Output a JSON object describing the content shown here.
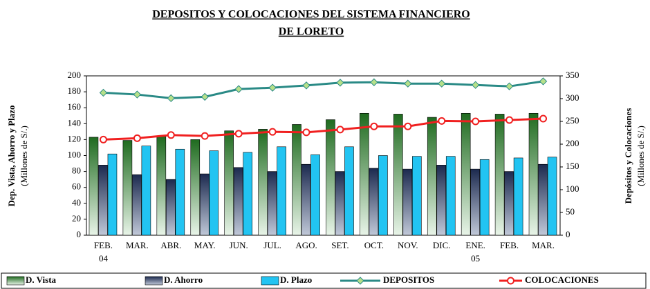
{
  "chart_data": {
    "type": "bar-line",
    "title": [
      "DEPOSITOS Y COLOCACIONES DEL SISTEMA FINANCIERO",
      "DE LORETO"
    ],
    "ylabel": "Dep. Vista, Ahorro y Plazo",
    "ylabel_unit": "(Millones de S/.)",
    "y2label": "Depósitos y Colocaciones",
    "y2label_unit": "(Millones de S/.)",
    "categories": [
      "FEB.",
      "MAR.",
      "ABR.",
      "MAY.",
      "JUN.",
      "JUL.",
      "AGO.",
      "SET.",
      "OCT.",
      "NOV.",
      "DIC.",
      "ENE.",
      "FEB.",
      "MAR."
    ],
    "category_sublabels": [
      "04",
      null,
      null,
      null,
      null,
      null,
      null,
      null,
      null,
      null,
      null,
      "05",
      null,
      null
    ],
    "ylim": [
      0,
      200
    ],
    "yticks": [
      0,
      20,
      40,
      60,
      80,
      100,
      120,
      140,
      160,
      180,
      200
    ],
    "y2lim": [
      0,
      350
    ],
    "y2ticks": [
      0,
      50,
      100,
      150,
      200,
      250,
      300,
      350
    ],
    "series": [
      {
        "name": "D. Vista",
        "kind": "bar",
        "color": "#1f6b1f",
        "values": [
          123,
          119,
          124,
          120,
          131,
          133,
          139,
          145,
          153,
          152,
          148,
          153,
          152,
          153
        ]
      },
      {
        "name": "D. Ahorro",
        "kind": "bar",
        "color": "#1c2a4f",
        "values": [
          88,
          76,
          70,
          77,
          85,
          80,
          89,
          80,
          84,
          83,
          88,
          83,
          80,
          89
        ]
      },
      {
        "name": "D. Plazo",
        "kind": "bar",
        "color": "#22c4f2",
        "values": [
          102,
          112,
          108,
          106,
          104,
          111,
          101,
          111,
          100,
          99,
          99,
          95,
          97,
          98
        ]
      },
      {
        "name": "DEPOSITOS",
        "kind": "line",
        "axis": "y2",
        "color": "#2a8a86",
        "marker": "diamond",
        "marker_color": "#b6e08a",
        "values": [
          313,
          309,
          301,
          304,
          321,
          324,
          329,
          335,
          336,
          333,
          333,
          330,
          327,
          338
        ]
      },
      {
        "name": "COLOCACIONES",
        "kind": "line",
        "axis": "y2",
        "color": "#f02020",
        "marker": "circle",
        "marker_color": "#ffffff",
        "values": [
          210,
          213,
          220,
          218,
          223,
          227,
          226,
          232,
          239,
          239,
          251,
          250,
          253,
          256
        ]
      }
    ]
  }
}
